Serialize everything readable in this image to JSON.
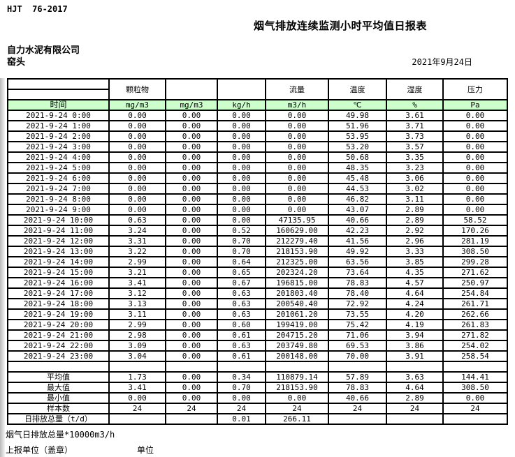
{
  "page": {
    "doc_code": "HJT  76-2017",
    "title": "烟气排放连续监测小时平均值日报表",
    "company": "自力水泥有限公司",
    "location": "窑头",
    "date": "2021年9月24日"
  },
  "colors": {
    "header_row_green": "#ccffcc",
    "border_black": "#000000"
  },
  "table": {
    "group_headers": [
      "",
      "颗粒物",
      "",
      "",
      "流量",
      "温度",
      "湿度",
      "压力"
    ],
    "unit_row": {
      "time_label": "时间",
      "units": [
        "mg/m3",
        "mg/m3",
        "kg/h",
        "m3/h",
        "℃",
        "%",
        "Pa"
      ]
    },
    "rows": [
      {
        "time": "2021-9-24 0:00",
        "values": [
          "0.00",
          "0.00",
          "0.00",
          "0.00",
          "49.98",
          "3.61",
          "0.00"
        ]
      },
      {
        "time": "2021-9-24 1:00",
        "values": [
          "0.00",
          "0.00",
          "0.00",
          "0.00",
          "51.96",
          "3.71",
          "0.00"
        ]
      },
      {
        "time": "2021-9-24 2:00",
        "values": [
          "0.00",
          "0.00",
          "0.00",
          "0.00",
          "53.95",
          "3.73",
          "0.00"
        ]
      },
      {
        "time": "2021-9-24 3:00",
        "values": [
          "0.00",
          "0.00",
          "0.00",
          "0.00",
          "53.20",
          "3.57",
          "0.00"
        ]
      },
      {
        "time": "2021-9-24 4:00",
        "values": [
          "0.00",
          "0.00",
          "0.00",
          "0.00",
          "50.68",
          "3.35",
          "0.00"
        ]
      },
      {
        "time": "2021-9-24 5:00",
        "values": [
          "0.00",
          "0.00",
          "0.00",
          "0.00",
          "48.35",
          "3.23",
          "0.00"
        ]
      },
      {
        "time": "2021-9-24 6:00",
        "values": [
          "0.00",
          "0.00",
          "0.00",
          "0.00",
          "45.48",
          "3.06",
          "0.00"
        ]
      },
      {
        "time": "2021-9-24 7:00",
        "values": [
          "0.00",
          "0.00",
          "0.00",
          "0.00",
          "44.53",
          "3.02",
          "0.00"
        ]
      },
      {
        "time": "2021-9-24 8:00",
        "values": [
          "0.00",
          "0.00",
          "0.00",
          "0.00",
          "46.82",
          "3.11",
          "0.00"
        ]
      },
      {
        "time": "2021-9-24 9:00",
        "values": [
          "0.00",
          "0.00",
          "0.00",
          "0.00",
          "43.07",
          "2.89",
          "0.00"
        ]
      },
      {
        "time": "2021-9-24 10:00",
        "values": [
          "0.63",
          "0.00",
          "0.00",
          "47135.95",
          "40.66",
          "2.89",
          "58.52"
        ]
      },
      {
        "time": "2021-9-24 11:00",
        "values": [
          "3.24",
          "0.00",
          "0.52",
          "160629.00",
          "42.23",
          "2.92",
          "170.26"
        ]
      },
      {
        "time": "2021-9-24 12:00",
        "values": [
          "3.31",
          "0.00",
          "0.70",
          "212279.40",
          "41.56",
          "2.96",
          "281.19"
        ]
      },
      {
        "time": "2021-9-24 13:00",
        "values": [
          "3.22",
          "0.00",
          "0.70",
          "218153.90",
          "49.92",
          "3.33",
          "308.50"
        ]
      },
      {
        "time": "2021-9-24 14:00",
        "values": [
          "2.99",
          "0.00",
          "0.64",
          "212325.00",
          "63.56",
          "3.85",
          "299.28"
        ]
      },
      {
        "time": "2021-9-24 15:00",
        "values": [
          "3.21",
          "0.00",
          "0.65",
          "202324.20",
          "73.64",
          "4.35",
          "271.62"
        ]
      },
      {
        "time": "2021-9-24 16:00",
        "values": [
          "3.41",
          "0.00",
          "0.67",
          "196815.00",
          "78.83",
          "4.57",
          "250.97"
        ]
      },
      {
        "time": "2021-9-24 17:00",
        "values": [
          "3.12",
          "0.00",
          "0.63",
          "201803.40",
          "78.40",
          "4.64",
          "254.84"
        ]
      },
      {
        "time": "2021-9-24 18:00",
        "values": [
          "3.13",
          "0.00",
          "0.63",
          "200540.40",
          "72.92",
          "4.24",
          "261.71"
        ]
      },
      {
        "time": "2021-9-24 19:00",
        "values": [
          "3.11",
          "0.00",
          "0.63",
          "201061.20",
          "73.55",
          "4.20",
          "262.66"
        ]
      },
      {
        "time": "2021-9-24 20:00",
        "values": [
          "2.99",
          "0.00",
          "0.60",
          "199419.00",
          "75.42",
          "4.19",
          "261.83"
        ]
      },
      {
        "time": "2021-9-24 21:00",
        "values": [
          "2.98",
          "0.00",
          "0.61",
          "204715.20",
          "71.06",
          "3.94",
          "271.82"
        ]
      },
      {
        "time": "2021-9-24 22:00",
        "values": [
          "3.09",
          "0.00",
          "0.63",
          "203749.80",
          "69.53",
          "3.86",
          "254.02"
        ]
      },
      {
        "time": "2021-9-24 23:00",
        "values": [
          "3.04",
          "0.00",
          "0.61",
          "200148.00",
          "70.00",
          "3.91",
          "258.54"
        ]
      }
    ],
    "summary": [
      {
        "label": "平均值",
        "values": [
          "1.73",
          "0.00",
          "0.34",
          "110879.14",
          "57.89",
          "3.63",
          "144.41"
        ]
      },
      {
        "label": "最大值",
        "values": [
          "3.41",
          "0.00",
          "0.70",
          "218153.90",
          "78.83",
          "4.64",
          "308.50"
        ]
      },
      {
        "label": "最小值",
        "values": [
          "0.00",
          "0.00",
          "0.00",
          "0.00",
          "40.66",
          "2.89",
          "0.00"
        ]
      },
      {
        "label": "样本数",
        "values": [
          "24",
          "24",
          "24",
          "24",
          "24",
          "24",
          "24"
        ]
      },
      {
        "label": "日排放总量（t/d）",
        "values": [
          "",
          "",
          "0.01",
          "266.11",
          "",
          "",
          ""
        ]
      }
    ]
  },
  "footer": {
    "note": "烟气日排放总量*10000m3/h",
    "report_unit_label": "上报单位（盖章）",
    "unit_label": "单位"
  }
}
